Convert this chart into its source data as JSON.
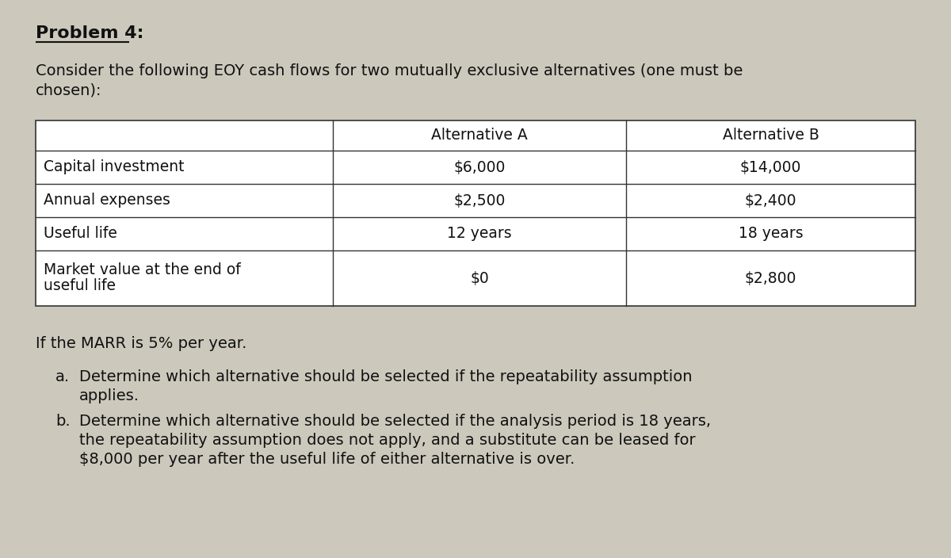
{
  "background_color": "#ccc8bc",
  "title": "Problem 4:",
  "intro_line1": "Consider the following EOY cash flows for two mutually exclusive alternatives (one must be",
  "intro_line2": "chosen):",
  "table": {
    "col_headers": [
      "",
      "Alternative A",
      "Alternative B"
    ],
    "rows": [
      [
        "Capital investment",
        "$6,000",
        "$14,000"
      ],
      [
        "Annual expenses",
        "$2,500",
        "$2,400"
      ],
      [
        "Useful life",
        "12 years",
        "18 years"
      ],
      [
        "Market value at the end of\nuseful life",
        "$0",
        "$2,800"
      ]
    ]
  },
  "marr_text": "If the MARR is 5% per year.",
  "part_a_label": "a.",
  "part_a_line1": "Determine which alternative should be selected if the repeatability assumption",
  "part_a_line2": "applies.",
  "part_b_label": "b.",
  "part_b_line1": "Determine which alternative should be selected if the analysis period is 18 years,",
  "part_b_line2": "the repeatability assumption does not apply, and a substitute can be leased for",
  "part_b_line3": "$8,000 per year after the useful life of either alternative is over.",
  "font_size_title": 16,
  "font_size_body": 14,
  "font_size_table": 13.5,
  "text_color": "#111111",
  "line_color": "#333333",
  "table_bg": "#e8e4db"
}
